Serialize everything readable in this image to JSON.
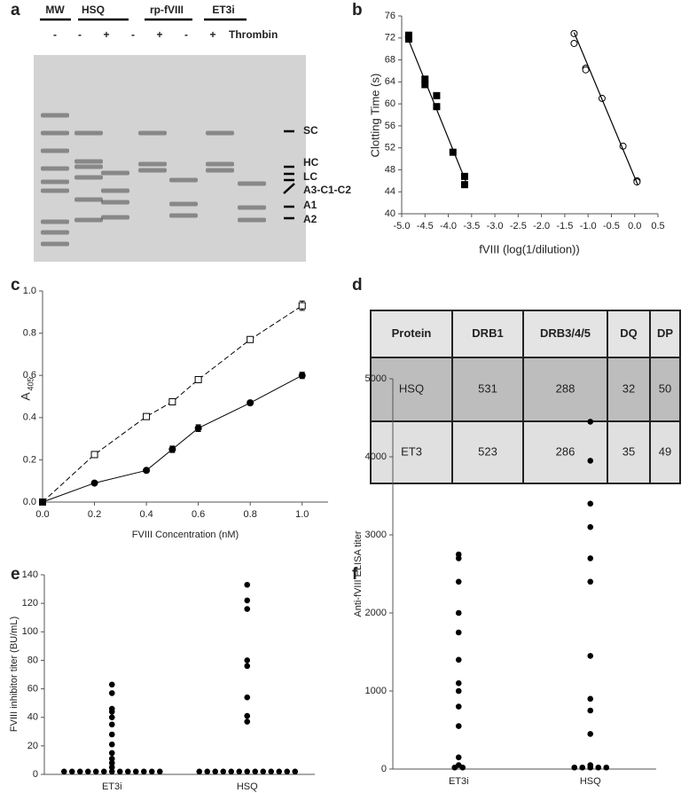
{
  "panel_labels": [
    "a",
    "b",
    "c",
    "d",
    "e",
    "f"
  ],
  "gel": {
    "lanes": [
      "MW",
      "HSQ",
      "rp-fVIII",
      "ET3i"
    ],
    "thrombin_signs": [
      "-",
      "-",
      "+",
      "-",
      "+",
      "-",
      "+"
    ],
    "thrombin_label": "Thrombin",
    "bands": [
      "SC",
      "HC",
      "LC",
      "A3-C1-C2",
      "A1",
      "A2"
    ]
  },
  "chart_data": [
    {
      "type": "scatter",
      "xlabel": "fVIII (log(1/dilution))",
      "ylabel": "Clotting Time (s)",
      "xlim": [
        -5,
        0.5
      ],
      "xticks": [
        {
          "value": -5,
          "label": "-5.0"
        },
        -4.5,
        {
          "value": -4,
          "label": "-4.0"
        },
        -3.5,
        {
          "value": -3,
          "label": "-3.0"
        },
        -2.5,
        {
          "value": -2,
          "label": "-2.0"
        },
        -1.5,
        {
          "value": -1,
          "label": "-1.0"
        },
        -0.5,
        {
          "value": 0,
          "label": "0.0"
        },
        0.5
      ],
      "ylim": [
        40,
        76
      ],
      "yticks": [
        40,
        44,
        48,
        52,
        56,
        60,
        64,
        68,
        72,
        76
      ],
      "series": [
        {
          "color": "#000000",
          "marker": "square",
          "x": [
            -4.85,
            -4.85,
            -4.5,
            -4.5,
            -4.25,
            -4.25,
            -3.9,
            -3.65,
            -3.65
          ],
          "values": [
            72.5,
            71.8,
            64.5,
            63.5,
            61.5,
            59.5,
            51.2,
            46.8,
            45.3
          ]
        },
        {
          "color": "#000000",
          "marker": "open-circle",
          "x": [
            -1.3,
            -1.3,
            -1.05,
            -1.05,
            -0.7,
            -0.25,
            0.05,
            0.05
          ],
          "values": [
            72.8,
            71,
            66.5,
            66.2,
            61,
            52.3,
            46,
            45.8
          ]
        },
        {
          "color": "#000000",
          "marker": "fit-line",
          "x": [
            -4.9,
            -3.62
          ],
          "values": [
            72.6,
            45.8
          ]
        },
        {
          "color": "#000000",
          "marker": "fit-line",
          "x": [
            -1.3,
            0.07
          ],
          "values": [
            73,
            45.2
          ]
        }
      ]
    },
    {
      "type": "line",
      "xlabel": "FVIII Concentration (nM)",
      "ylabel": "A",
      "ylabel_sub": "405",
      "x": [
        0,
        0.2,
        0.4,
        0.5,
        0.6,
        0.8,
        1.0
      ],
      "xlim": [
        0,
        1.1
      ],
      "xticks": [
        {
          "value": 0,
          "label": "0.0"
        },
        0.2,
        0.4,
        0.6,
        0.8,
        {
          "value": 1,
          "label": "1.0"
        }
      ],
      "ylim": [
        0,
        1
      ],
      "yticks": [
        {
          "value": 0,
          "label": "0.0"
        },
        0.2,
        0.4,
        0.6,
        0.8,
        {
          "value": 1,
          "label": "1.0"
        }
      ],
      "series": [
        {
          "color": "#000000",
          "marker": "open-square",
          "dash": true,
          "values": [
            0,
            0.225,
            0.405,
            0.475,
            0.58,
            0.77,
            0.93
          ],
          "errors": [
            0,
            0.01,
            0.01,
            0.01,
            0.01,
            0.012,
            0.022
          ]
        },
        {
          "color": "#000000",
          "marker": "circle",
          "dash": false,
          "values": [
            0,
            0.09,
            0.15,
            0.25,
            0.35,
            0.47,
            0.6
          ],
          "errors": [
            0,
            0.005,
            0.006,
            0.015,
            0.016,
            0.01,
            0.015
          ]
        }
      ]
    },
    {
      "type": "strip",
      "ylabel": "FVIII inhibitor titer (BU/mL)",
      "categories": [
        "ET3i",
        "HSQ"
      ],
      "ylim": [
        0,
        140
      ],
      "yticks": [
        0,
        20,
        40,
        60,
        80,
        100,
        120,
        140
      ],
      "series": [
        {
          "color": "#000000",
          "values": [
            63,
            57,
            46,
            44,
            40,
            35,
            28,
            21,
            15,
            11,
            8,
            5,
            2,
            2,
            2,
            2,
            2,
            2,
            2,
            2,
            2,
            2,
            2,
            2,
            2
          ]
        },
        {
          "color": "#000000",
          "values": [
            133,
            122,
            116,
            80,
            76,
            54,
            41,
            37,
            2,
            2,
            2,
            2,
            2,
            2,
            2,
            2,
            2,
            2,
            2,
            2,
            2
          ]
        }
      ]
    },
    {
      "type": "strip",
      "ylabel": "Anti-fVIII ELISA titer",
      "categories": [
        "ET3i",
        "HSQ"
      ],
      "ylim": [
        0,
        5000
      ],
      "yticks": [
        0,
        1000,
        2000,
        3000,
        4000,
        5000
      ],
      "series": [
        {
          "color": "#000000",
          "values": [
            2750,
            2700,
            2400,
            2000,
            1750,
            1400,
            1100,
            1000,
            800,
            550,
            150,
            50,
            20,
            20
          ]
        },
        {
          "color": "#000000",
          "values": [
            4450,
            3950,
            3400,
            3100,
            2700,
            2400,
            1450,
            900,
            750,
            450,
            50,
            20,
            20,
            20,
            20,
            20
          ]
        }
      ]
    }
  ],
  "table": {
    "header": [
      "Protein",
      "DRB1",
      "DRB3/4/5",
      "DQ",
      "DP"
    ],
    "rows": [
      [
        "HSQ",
        531,
        288,
        32,
        50
      ],
      [
        "ET3",
        523,
        286,
        35,
        49
      ]
    ]
  }
}
